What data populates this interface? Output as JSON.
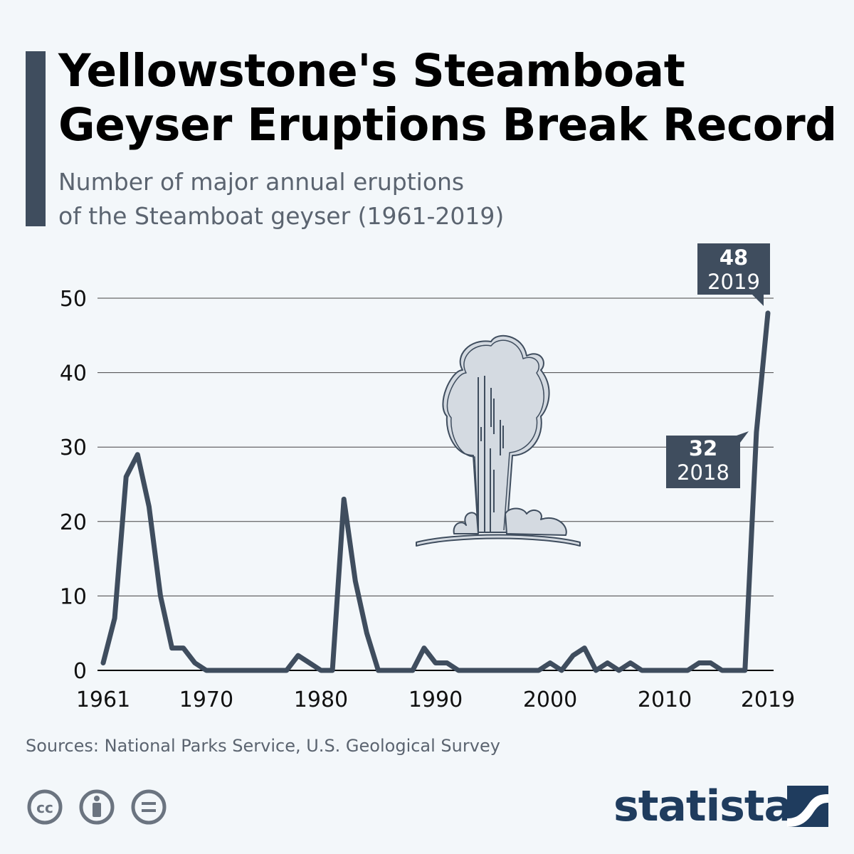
{
  "header": {
    "title_line1": "Yellowstone's Steamboat",
    "title_line2": "Geyser Eruptions Break Record",
    "subtitle_line1": "Number of major annual eruptions",
    "subtitle_line2": "of the Steamboat geyser (1961-2019)"
  },
  "chart_data": {
    "type": "line",
    "x": [
      1961,
      1962,
      1963,
      1964,
      1965,
      1966,
      1967,
      1968,
      1969,
      1970,
      1971,
      1972,
      1973,
      1974,
      1975,
      1976,
      1977,
      1978,
      1979,
      1980,
      1981,
      1982,
      1983,
      1984,
      1985,
      1986,
      1987,
      1988,
      1989,
      1990,
      1991,
      1992,
      1993,
      1994,
      1995,
      1996,
      1997,
      1998,
      1999,
      2000,
      2001,
      2002,
      2003,
      2004,
      2005,
      2006,
      2007,
      2008,
      2009,
      2010,
      2011,
      2012,
      2013,
      2014,
      2015,
      2016,
      2017,
      2018,
      2019
    ],
    "series": [
      {
        "values": [
          1,
          7,
          26,
          29,
          22,
          10,
          3,
          3,
          1,
          0,
          0,
          0,
          0,
          0,
          0,
          0,
          0,
          2,
          1,
          0,
          0,
          23,
          12,
          5,
          0,
          0,
          0,
          0,
          3,
          1,
          1,
          0,
          0,
          0,
          0,
          0,
          0,
          0,
          0,
          1,
          0,
          2,
          3,
          0,
          1,
          0,
          1,
          0,
          0,
          0,
          0,
          0,
          1,
          1,
          0,
          0,
          0,
          32,
          48
        ],
        "color": "#3f4d5e"
      }
    ],
    "ylim": [
      0,
      50
    ],
    "yticks": [
      "0",
      "10",
      "20",
      "30",
      "40",
      "50"
    ],
    "xticks": [
      "1961",
      "1970",
      "1980",
      "1990",
      "2000",
      "2010",
      "2019"
    ],
    "grid": true,
    "annotations": [
      {
        "value": "48",
        "year": "2019"
      },
      {
        "value": "32",
        "year": "2018"
      }
    ]
  },
  "footer": {
    "source": "Sources: National Parks Service, U.S. Geological Survey",
    "brand": "statista"
  },
  "icons": [
    "cc-icon",
    "attribution-icon",
    "no-derivatives-icon",
    "statista-logo-icon"
  ],
  "colors": {
    "line": "#3f4d5e",
    "accent": "#3f4d5e",
    "background": "#f3f7fa",
    "brand": "#1f3c5e"
  }
}
